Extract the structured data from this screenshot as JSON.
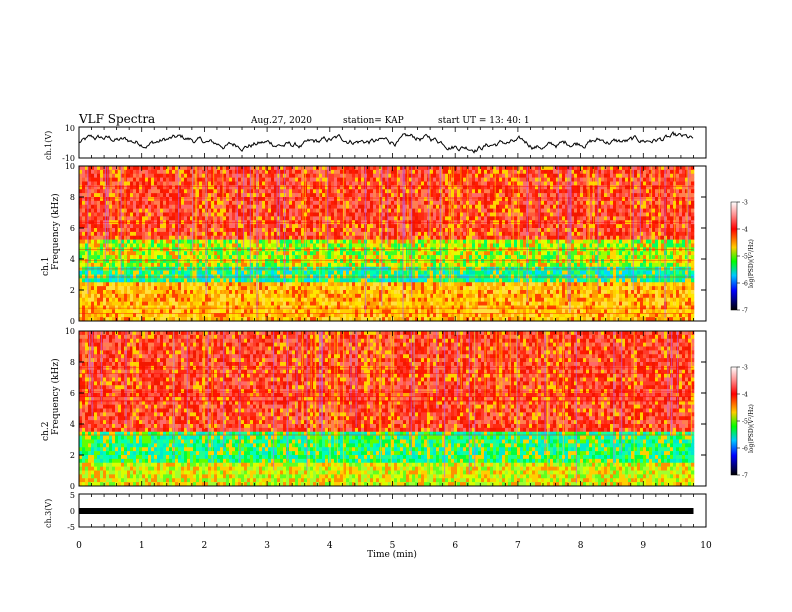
{
  "header": {
    "title": "VLF Spectra",
    "date": "Aug.27, 2020",
    "station": "station= KAP",
    "start": "start  UT  =   13: 40: 1"
  },
  "colorbar": {
    "label": "log(PSD)(V²/Hz)",
    "ticks": [
      "-3",
      "-4",
      "-5",
      "-6",
      "-7"
    ],
    "colors": [
      "#ffffff",
      "#ff0000",
      "#ffcc00",
      "#00ff00",
      "#00c8ff",
      "#0000ff",
      "#000000"
    ]
  },
  "chart_data": [
    {
      "type": "line",
      "name": "ch1-waveform",
      "ylabel": "ch.1(V)",
      "ylim": [
        -10,
        10
      ],
      "yticks": [
        "10",
        "-10"
      ],
      "xlim": [
        0,
        10
      ],
      "x_extent": [
        0,
        9.8
      ],
      "description_note": "noisy voltage waveform oscillating roughly between -5 and +6 V"
    },
    {
      "type": "heatmap",
      "name": "ch1-spectrogram",
      "ylabel": "ch.1 Frequency (kHz)",
      "ylim": [
        0,
        10
      ],
      "yticks": [
        "0",
        "2",
        "4",
        "6",
        "8",
        "10"
      ],
      "xlim": [
        0,
        10
      ],
      "x_extent": [
        0,
        9.8
      ],
      "bands_khz": [
        {
          "from": 0,
          "to": 2.5,
          "dominant": "yellow-orange"
        },
        {
          "from": 2.5,
          "to": 3.5,
          "dominant": "cyan-green"
        },
        {
          "from": 3.5,
          "to": 5.2,
          "dominant": "green-yellow"
        },
        {
          "from": 5.2,
          "to": 10,
          "dominant": "red"
        }
      ]
    },
    {
      "type": "heatmap",
      "name": "ch2-spectrogram",
      "ylabel": "ch.2 Frequency (kHz)",
      "ylim": [
        0,
        10
      ],
      "yticks": [
        "0",
        "2",
        "4",
        "6",
        "8",
        "10"
      ],
      "xlim": [
        0,
        10
      ],
      "x_extent": [
        0,
        9.8
      ],
      "bands_khz": [
        {
          "from": 0,
          "to": 1.5,
          "dominant": "yellow-green"
        },
        {
          "from": 1.5,
          "to": 3.5,
          "dominant": "green-cyan"
        },
        {
          "from": 3.5,
          "to": 10,
          "dominant": "red"
        }
      ]
    },
    {
      "type": "line",
      "name": "ch3-waveform",
      "ylabel": "ch.3(V)",
      "ylim": [
        -5,
        5
      ],
      "yticks": [
        "5",
        "0",
        "-5"
      ],
      "xlim": [
        0,
        10
      ],
      "x_extent": [
        0,
        9.8
      ],
      "values_approx": {
        "center": -0.2,
        "spread": 0.7
      }
    }
  ],
  "xaxis": {
    "label": "Time  (min)",
    "ticks": [
      "0",
      "1",
      "2",
      "3",
      "4",
      "5",
      "6",
      "7",
      "8",
      "9",
      "10"
    ]
  }
}
